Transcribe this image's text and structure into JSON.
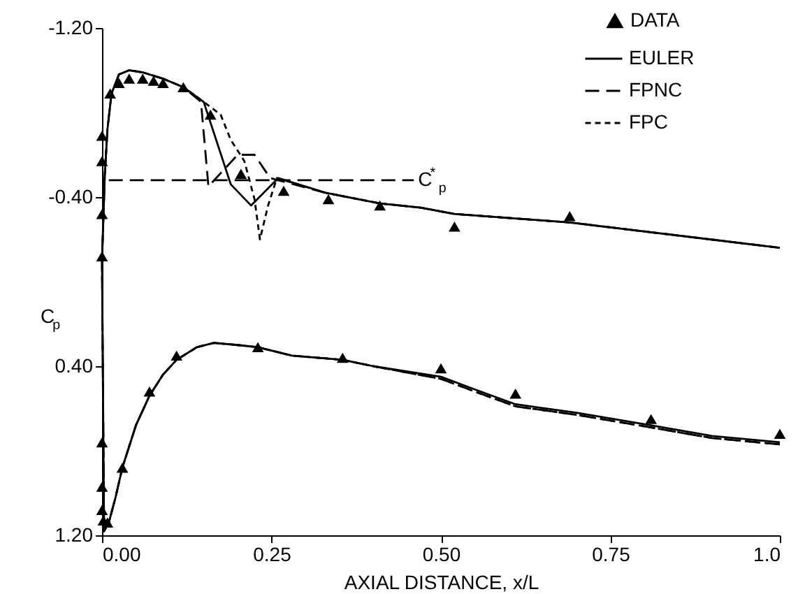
{
  "chart_data": {
    "type": "line",
    "xlabel": "AXIAL DISTANCE, x/L",
    "ylabel": "C$_{p}$",
    "xlim": [
      0,
      1.0
    ],
    "xticks": [
      {
        "value": 0,
        "label": "0.00"
      },
      0.25,
      {
        "value": 0.5,
        "label": "0.50"
      },
      0.75,
      {
        "value": 1,
        "label": "1.0"
      }
    ],
    "ylim": [
      1.2,
      -1.2
    ],
    "yticks": [
      {
        "value": -1.2,
        "label": "-1.20"
      },
      {
        "value": -0.4,
        "label": "-0.40"
      },
      {
        "value": 0.4,
        "label": "0.40"
      },
      {
        "value": 1.2,
        "label": "1.20"
      }
    ],
    "legend": "top right",
    "grid": false,
    "annotations": [
      {
        "text": "C$^{*}$$_{p}$",
        "x": 0.46,
        "y": -0.48
      }
    ],
    "series": [
      {
        "name": "DATA",
        "type": "scatter",
        "marker": "triangle",
        "color": "#000000",
        "x": [
          0,
          0,
          0,
          0,
          0.012,
          0.025,
          0.04,
          0.06,
          0.076,
          0.09,
          0.12,
          0.16,
          0.205,
          0.268,
          0.334,
          0.41,
          0.52,
          0.69,
          0,
          0,
          0,
          0.002,
          0.008,
          0.03,
          0.07,
          0.11,
          0.23,
          0.355,
          0.5,
          0.61,
          0.81,
          1.0
        ],
        "values": [
          -0.12,
          -0.32,
          -0.57,
          -0.69,
          -0.89,
          -0.94,
          -0.96,
          -0.96,
          -0.95,
          -0.94,
          -0.92,
          -0.79,
          -0.51,
          -0.43,
          -0.39,
          -0.36,
          -0.26,
          -0.31,
          0.76,
          0.97,
          1.08,
          1.13,
          1.14,
          0.88,
          0.52,
          0.35,
          0.31,
          0.36,
          0.41,
          0.53,
          0.65,
          0.72
        ]
      },
      {
        "name": "EULER",
        "line_style": "solid",
        "color": "#000000",
        "x": [
          1.0,
          0.9,
          0.81,
          0.7,
          0.61,
          0.55,
          0.5,
          0.4,
          0.355,
          0.28,
          0.23,
          0.2,
          0.165,
          0.14,
          0.11,
          0.09,
          0.07,
          0.05,
          0.03,
          0.02,
          0.01,
          0.003,
          0,
          0.004,
          0.008,
          0.014,
          0.025,
          0.04,
          0.06,
          0.09,
          0.12,
          0.15,
          0.19,
          0.22,
          0.26,
          0.33,
          0.41,
          0.47,
          0.52,
          0.69,
          1.0
        ],
        "values": [
          0.76,
          0.73,
          0.68,
          0.62,
          0.58,
          0.51,
          0.45,
          0.4,
          0.37,
          0.35,
          0.31,
          0.3,
          0.29,
          0.31,
          0.37,
          0.44,
          0.54,
          0.68,
          0.88,
          1.02,
          1.14,
          1.18,
          -0.1,
          -0.5,
          -0.72,
          -0.89,
          -0.98,
          -1.0,
          -0.99,
          -0.96,
          -0.92,
          -0.85,
          -0.46,
          -0.36,
          -0.49,
          -0.42,
          -0.37,
          -0.35,
          -0.32,
          -0.28,
          -0.16
        ]
      },
      {
        "name": "FPNC",
        "line_style": "dashed",
        "color": "#000000",
        "x": [
          1.0,
          0.9,
          0.81,
          0.7,
          0.61,
          0.55,
          0.5,
          0.4,
          0.355,
          0.28,
          0.23,
          0.2,
          0.165,
          0.14,
          0.11,
          0.09,
          0.07,
          0.05,
          0.03,
          0.02,
          0.01,
          0.003,
          0,
          0.004,
          0.008,
          0.014,
          0.025,
          0.04,
          0.06,
          0.09,
          0.12,
          0.146,
          0.157,
          0.2,
          0.225,
          0.248,
          0.26,
          0.33,
          0.41,
          0.47,
          0.52,
          0.69,
          1.0
        ],
        "values": [
          0.77,
          0.74,
          0.69,
          0.63,
          0.59,
          0.52,
          0.46,
          0.4,
          0.37,
          0.35,
          0.31,
          0.3,
          0.29,
          0.31,
          0.37,
          0.44,
          0.54,
          0.68,
          0.88,
          1.02,
          1.14,
          1.18,
          -0.1,
          -0.5,
          -0.72,
          -0.89,
          -0.98,
          -1.0,
          -0.99,
          -0.96,
          -0.92,
          -0.85,
          -0.45,
          -0.6,
          -0.6,
          -0.49,
          -0.48,
          -0.42,
          -0.37,
          -0.35,
          -0.32,
          -0.28,
          -0.16
        ]
      },
      {
        "name": "FPC",
        "line_style": "dotted",
        "color": "#000000",
        "x": [
          1.0,
          0.9,
          0.81,
          0.7,
          0.61,
          0.55,
          0.5,
          0.4,
          0.355,
          0.28,
          0.23,
          0.2,
          0.165,
          0.14,
          0.11,
          0.09,
          0.07,
          0.05,
          0.03,
          0.02,
          0.01,
          0.003,
          0,
          0.004,
          0.008,
          0.014,
          0.025,
          0.04,
          0.06,
          0.09,
          0.12,
          0.146,
          0.175,
          0.19,
          0.21,
          0.225,
          0.233,
          0.245,
          0.258,
          0.33,
          0.41,
          0.47,
          0.52,
          0.69,
          1.0
        ],
        "values": [
          0.77,
          0.74,
          0.69,
          0.63,
          0.59,
          0.52,
          0.46,
          0.4,
          0.37,
          0.35,
          0.31,
          0.3,
          0.29,
          0.31,
          0.37,
          0.44,
          0.54,
          0.68,
          0.88,
          1.02,
          1.14,
          1.18,
          -0.1,
          -0.5,
          -0.72,
          -0.89,
          -0.98,
          -1.0,
          -0.99,
          -0.96,
          -0.92,
          -0.86,
          -0.79,
          -0.67,
          -0.57,
          -0.39,
          -0.2,
          -0.36,
          -0.49,
          -0.42,
          -0.37,
          -0.35,
          -0.32,
          -0.28,
          -0.16
        ]
      },
      {
        "line_style": "dashed",
        "color": "#000000",
        "x": [
          0.01,
          0.46
        ],
        "values": [
          -0.48,
          -0.48
        ]
      }
    ]
  }
}
